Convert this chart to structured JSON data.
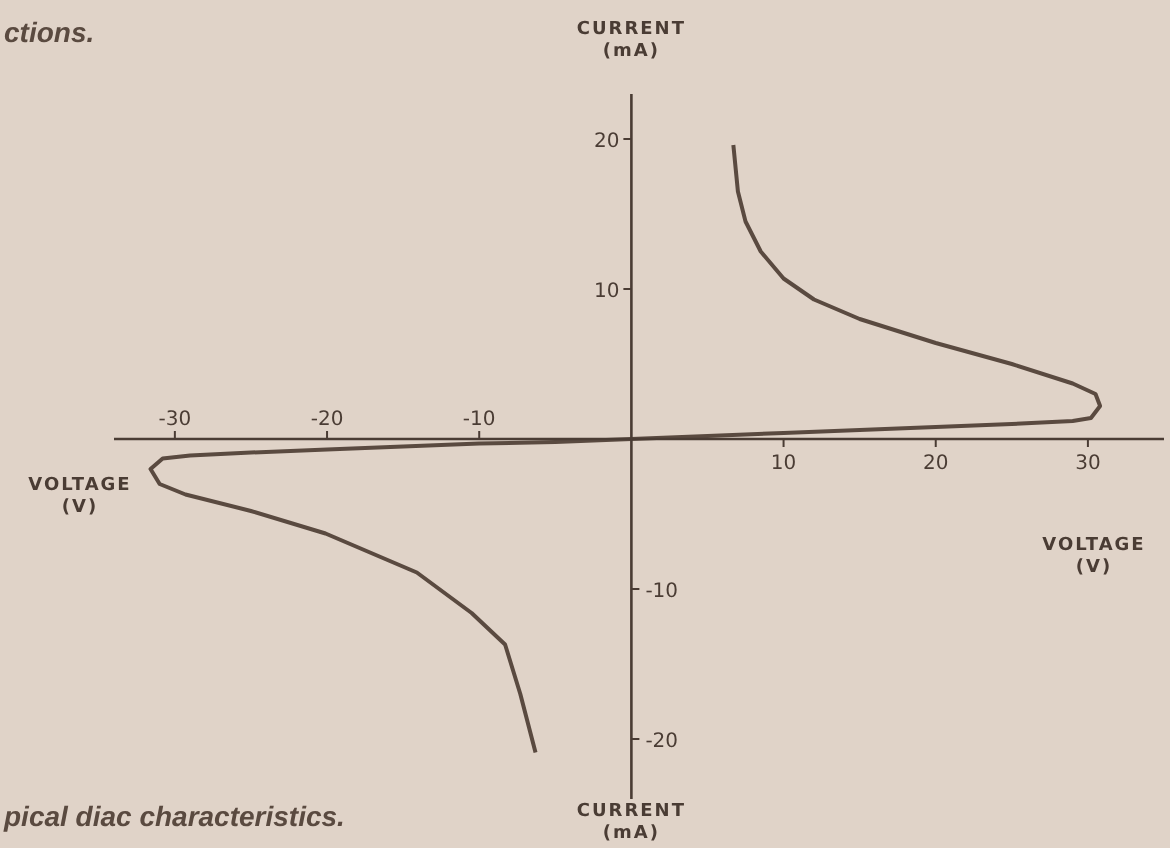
{
  "chart_data": {
    "type": "line",
    "xlabel": "VOLTAGE (V)",
    "x2label": "VOLTAGE (V)",
    "ylabel": "CURRENT (mA)",
    "annotations": [
      "ctions.",
      "pical diac characteristics.",
      "CURRENT (mA)"
    ],
    "xlim": [
      -34,
      35
    ],
    "xticks": [
      10,
      20,
      30
    ],
    "x2lim": [
      -34,
      35
    ],
    "x2ticks": [
      -30,
      -20,
      -10
    ],
    "ylim": [
      -24,
      23
    ],
    "yticks": [
      20,
      10
    ],
    "y2lim": [
      -24,
      23
    ],
    "y2ticks": [
      -10,
      -20
    ],
    "grid": false,
    "marker": "none",
    "line_style": "solid",
    "series": [
      {
        "color": "#5a4a40",
        "x": [
          6.7,
          7,
          7.5,
          8.5,
          10,
          12,
          15,
          20,
          25,
          29,
          30.5,
          30.8,
          30.2,
          29,
          25,
          20,
          15,
          10,
          5,
          0,
          -5,
          -10,
          -15,
          -20,
          -25,
          -29,
          -30.8,
          -31.6,
          -31,
          -29.3,
          -25,
          -20.1,
          -14.1,
          -10.5,
          -8.3,
          -7.3,
          -6.3
        ],
        "values": [
          19.6,
          16.5,
          14.5,
          12.5,
          10.7,
          9.3,
          8,
          6.4,
          5,
          3.7,
          3,
          2.2,
          1.4,
          1.2,
          1.0,
          0.8,
          0.6,
          0.4,
          0.2,
          0,
          -0.2,
          -0.3,
          -0.5,
          -0.7,
          -0.9,
          -1.1,
          -1.3,
          -2,
          -3,
          -3.7,
          -4.8,
          -6.3,
          -8.9,
          -11.6,
          -13.7,
          -17,
          -20.9
        ]
      }
    ]
  }
}
